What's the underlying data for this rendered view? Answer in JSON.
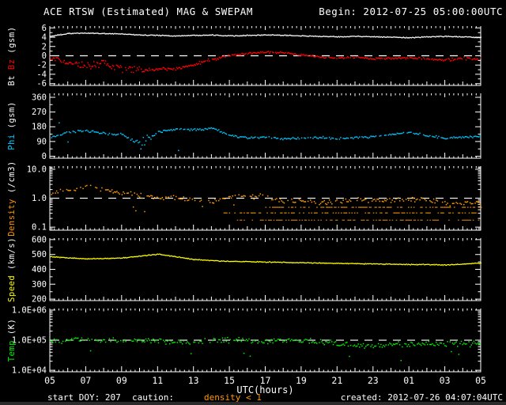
{
  "header": {
    "title": "ACE RTSW (Estimated) MAG & SWEPAM",
    "begin_label": "Begin: 2012-07-25 05:00:00UTC"
  },
  "footer": {
    "start_doy": "start DOY: 207",
    "caution": "caution:",
    "warning": "density < 1",
    "created": "created: 2012-07-26 04:07:04UTC"
  },
  "xaxis": {
    "label": "UTC(hours)",
    "start_hour": 5,
    "end_hour": 29,
    "tick_labels": [
      "05",
      "07",
      "09",
      "11",
      "13",
      "15",
      "17",
      "19",
      "21",
      "23",
      "01",
      "03",
      "05"
    ]
  },
  "colors": {
    "background": "#000000",
    "frame": "#ffffff",
    "dashed_reference": "#ffffff",
    "warning_text": "#ff9900",
    "footer_strip": "#2b2b2b"
  },
  "chart_data": [
    {
      "name": "mag",
      "type": "scatter",
      "scale": "linear",
      "yrange": [
        -6.4,
        6.4
      ],
      "dashed_at": 0,
      "ylabel_parts": [
        {
          "text": "Bt ",
          "color": "#ffffff"
        },
        {
          "text": "Bz",
          "color": "#ff0000"
        },
        {
          "text": " (gsm)",
          "color": "#ffffff"
        }
      ],
      "yticks": {
        "values": [
          6,
          4,
          2,
          0,
          -2,
          -4,
          -6
        ],
        "labels": [
          "6",
          "4",
          "2",
          "0",
          "-2",
          "-4",
          "-6"
        ],
        "minors": [
          5,
          3,
          1,
          -1,
          -3,
          -5
        ]
      },
      "series": [
        {
          "name": "Bt",
          "style": "line",
          "color": "#ffffff",
          "jitter": 0.12,
          "values": [
            4.3,
            4.9,
            5.0,
            4.9,
            4.8,
            4.6,
            4.5,
            4.4,
            4.5,
            4.6,
            4.4,
            4.5,
            4.6,
            4.5,
            4.4,
            4.3,
            4.2,
            4.3,
            4.2,
            4.1,
            4.0,
            4.2,
            4.3,
            4.2,
            4.0
          ]
        },
        {
          "name": "Bz",
          "style": "scatter",
          "color": "#ff0000",
          "skip": 0.1,
          "values": [
            -0.3,
            -1.3,
            -1.9,
            -1.6,
            -2.7,
            -2.8,
            -2.9,
            -2.6,
            -1.8,
            -0.7,
            0.2,
            0.6,
            0.9,
            0.8,
            0.3,
            -0.1,
            -0.4,
            -0.2,
            -0.5,
            -0.4,
            -0.3,
            -0.5,
            -0.8,
            -0.5,
            -0.6
          ],
          "spread": [
            0.5,
            0.9,
            1.1,
            1.1,
            1.0,
            0.8,
            0.5,
            0.4,
            0.5,
            0.4,
            0.3,
            0.25,
            0.25,
            0.25,
            0.3,
            0.3,
            0.3,
            0.3,
            0.3,
            0.3,
            0.3,
            0.3,
            0.35,
            0.4,
            0.35
          ]
        }
      ]
    },
    {
      "name": "phi",
      "type": "scatter",
      "scale": "linear",
      "yrange": [
        -12,
        384
      ],
      "dashed_at": null,
      "ylabel_parts": [
        {
          "text": "Phi",
          "color": "#00c8ff"
        },
        {
          "text": " (gsm)",
          "color": "#ffffff"
        }
      ],
      "yticks": {
        "values": [
          360,
          270,
          180,
          90,
          0
        ],
        "labels": [
          "360",
          "270",
          "180",
          "90",
          "0"
        ],
        "minors": [
          315,
          225,
          135,
          45
        ]
      },
      "series": [
        {
          "name": "Phi",
          "style": "scatter",
          "color": "#00c8ff",
          "skip": 0.12,
          "outlier": {
            "p": 0.012,
            "mag": 90,
            "sign": 0,
            "from": 5,
            "to": 29
          },
          "values": [
            120,
            150,
            160,
            142,
            136,
            80,
            150,
            170,
            165,
            175,
            130,
            115,
            120,
            110,
            114,
            118,
            108,
            118,
            124,
            135,
            150,
            128,
            114,
            120,
            126
          ],
          "spread": [
            8,
            8,
            8,
            8,
            10,
            38,
            10,
            7,
            8,
            7,
            9,
            8,
            7,
            7,
            7,
            8,
            10,
            8,
            8,
            8,
            8,
            8,
            8,
            8,
            8
          ]
        }
      ]
    },
    {
      "name": "density",
      "type": "scatter",
      "scale": "log",
      "yrange": [
        0.078,
        12.9
      ],
      "dashed_at": 1.0,
      "ylabel_parts": [
        {
          "text": "Density",
          "color": "#ff9900"
        },
        {
          "text": " (/cm3)",
          "color": "#ffffff"
        }
      ],
      "yticks": {
        "values": [
          10,
          1,
          0.1
        ],
        "labels": [
          "10.0",
          "1.0",
          "0.1"
        ],
        "minors": [
          12,
          11,
          9,
          8,
          7,
          6,
          5,
          4,
          3,
          2,
          0.9,
          0.8,
          0.7,
          0.6,
          0.5,
          0.4,
          0.3,
          0.2,
          0.09,
          0.08
        ]
      },
      "series": [
        {
          "name": "Density",
          "style": "scatter",
          "color": "#ff9900",
          "skip": 0.3,
          "jitter": 0.1,
          "outlier": {
            "p": 0.06,
            "mag": 0.4,
            "sign": -1,
            "from": 9,
            "to": 16
          },
          "values": [
            1.5,
            2.0,
            2.6,
            2.1,
            1.6,
            1.3,
            1.0,
            1.1,
            0.95,
            0.8,
            1.2,
            1.25,
            1.15,
            0.85,
            0.8,
            0.75,
            0.8,
            0.9,
            0.85,
            0.9,
            1.0,
            0.9,
            0.7,
            0.7,
            0.75
          ]
        }
      ],
      "quantized_rows": [
        {
          "value": 0.5,
          "from": 17,
          "to": 29
        },
        {
          "value": 0.32,
          "from": 14.6,
          "to": 29
        },
        {
          "value": 0.18,
          "from": 15.2,
          "to": 29
        }
      ]
    },
    {
      "name": "speed",
      "type": "line",
      "scale": "linear",
      "yrange": [
        190,
        610
      ],
      "dashed_at": null,
      "ylabel_parts": [
        {
          "text": "Speed",
          "color": "#ffff00"
        },
        {
          "text": " (km/s)",
          "color": "#ffffff"
        }
      ],
      "yticks": {
        "values": [
          600,
          500,
          400,
          300,
          200
        ],
        "labels": [
          "600",
          "500",
          "400",
          "300",
          "200"
        ],
        "minors": [
          550,
          450,
          350,
          250
        ]
      },
      "series": [
        {
          "name": "Speed",
          "style": "line",
          "color": "#ffff00",
          "jitter": 3.5,
          "values": [
            488,
            480,
            474,
            476,
            480,
            492,
            505,
            488,
            470,
            462,
            457,
            455,
            452,
            450,
            448,
            446,
            444,
            442,
            440,
            438,
            436,
            436,
            432,
            438,
            446
          ]
        }
      ]
    },
    {
      "name": "temp",
      "type": "scatter",
      "scale": "log",
      "yrange": [
        8900,
        1130000
      ],
      "dashed_at": 100000,
      "ylabel_parts": [
        {
          "text": "Temp",
          "color": "#00ee00"
        },
        {
          "text": " (K)",
          "color": "#ffffff"
        }
      ],
      "yticks": {
        "values": [
          1000000,
          100000,
          10000
        ],
        "labels": [
          "1.0E+06",
          "1.0E+05",
          "1.0E+04"
        ],
        "minors": [
          900000,
          800000,
          700000,
          600000,
          500000,
          400000,
          300000,
          200000,
          90000,
          80000,
          70000,
          60000,
          50000,
          40000,
          30000,
          20000
        ]
      },
      "series": [
        {
          "name": "Temp",
          "style": "scatter",
          "color": "#00ee00",
          "skip": 0.1,
          "jitter": 0.11,
          "outlier": {
            "p": 0.04,
            "mag": 0.35,
            "sign": -1,
            "from": 5,
            "to": 29
          },
          "values": [
            100000,
            105000,
            105000,
            100000,
            95000,
            105000,
            100000,
            89000,
            90000,
            100000,
            105000,
            100000,
            100000,
            105000,
            100000,
            93000,
            80000,
            71000,
            71000,
            76000,
            74000,
            79000,
            76000,
            79000,
            80000
          ]
        }
      ]
    }
  ]
}
